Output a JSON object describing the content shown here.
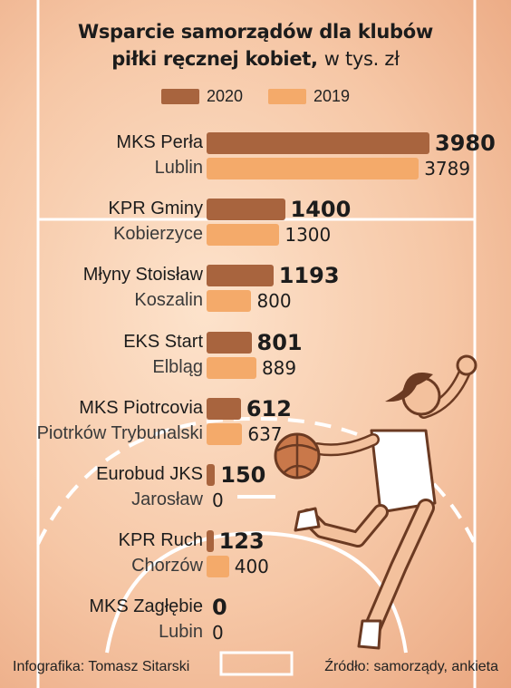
{
  "title_line1": "Wsparcie samorządów dla klubów",
  "title_line2_bold": "piłki ręcznej kobiet,",
  "title_line2_unit": "w tys. zł",
  "footer": {
    "credit": "Infografika: Tomasz Sitarski",
    "source": "Źródło: samorządy, ankieta"
  },
  "colors": {
    "bar_2020": "#a8643e",
    "bar_2019": "#f4aa6a",
    "court_lines": "#ffffff"
  },
  "illustration": "handball-player-icon",
  "chart_data": {
    "type": "bar",
    "orientation": "horizontal",
    "legend_placement": "top-center",
    "series": [
      {
        "name": "2020",
        "values": [
          3980,
          1400,
          1193,
          801,
          612,
          150,
          123,
          0
        ]
      },
      {
        "name": "2019",
        "values": [
          3789,
          1300,
          800,
          889,
          637,
          0,
          400,
          0
        ]
      }
    ],
    "categories": [
      {
        "club": "MKS Perła",
        "city": "Lublin"
      },
      {
        "club": "KPR Gminy",
        "city": "Kobierzyce"
      },
      {
        "club": "Młyny Stoisław",
        "city": "Koszalin"
      },
      {
        "club": "EKS Start",
        "city": "Elbląg"
      },
      {
        "club": "MKS Piotrcovia",
        "city": "Piotrków Trybunalski"
      },
      {
        "club": "Eurobud JKS",
        "city": "Jarosław"
      },
      {
        "club": "KPR Ruch",
        "city": "Chorzów"
      },
      {
        "club": "MKS Zagłębie",
        "city": "Lubin"
      }
    ],
    "xlim": [
      0,
      3980
    ],
    "grid": false
  }
}
